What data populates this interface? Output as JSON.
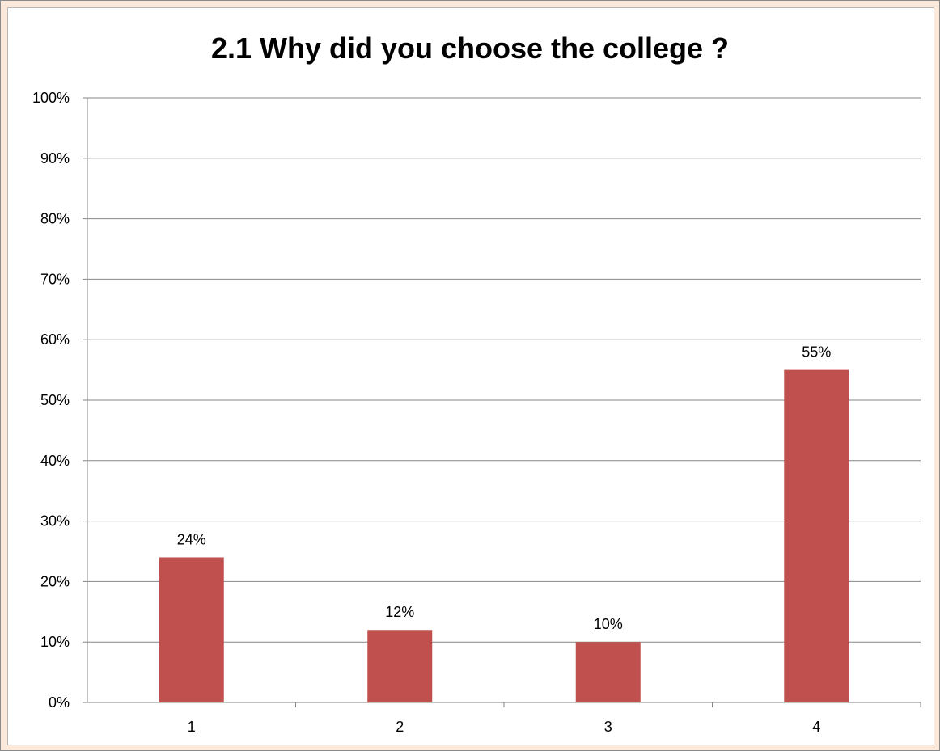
{
  "chart_data": {
    "type": "bar",
    "title": "2.1 Why did you choose the college ?",
    "categories": [
      "1",
      "2",
      "3",
      "4"
    ],
    "values": [
      24,
      12,
      10,
      55
    ],
    "data_labels": [
      "24%",
      "12%",
      "10%",
      "55%"
    ],
    "ylim": [
      0,
      100
    ],
    "y_ticks": [
      "0%",
      "10%",
      "20%",
      "30%",
      "40%",
      "50%",
      "60%",
      "70%",
      "80%",
      "90%",
      "100%"
    ],
    "xlabel": "",
    "ylabel": "",
    "grid": true,
    "legend": "none",
    "colors": {
      "bar": "#c0504d",
      "grid": "#868686",
      "frame_background": "#fce9da",
      "plot_background": "#ffffff"
    }
  }
}
